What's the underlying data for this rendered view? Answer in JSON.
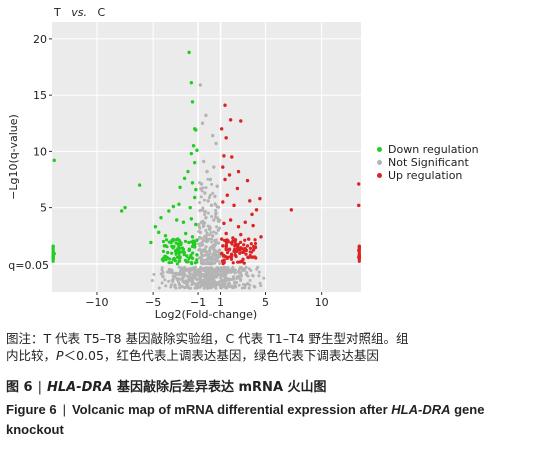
{
  "header": {
    "t": "T",
    "vs": "vs.",
    "c": "C"
  },
  "chart_data": {
    "type": "scatter",
    "xlabel": "Log2(Fold-change)",
    "ylabel": "−Lg10(q-value)",
    "xlim": [
      -14,
      13.5
    ],
    "ylim": [
      -2.5,
      21.5
    ],
    "x_ticks": [
      -10,
      -5,
      -1,
      1,
      5,
      10
    ],
    "x_tick_labels": [
      "−10",
      "−5",
      "−1",
      "1",
      "5",
      "10"
    ],
    "y_ticks": [
      5,
      10,
      15,
      20
    ],
    "y_tick_labels": [
      "5",
      "10",
      "15",
      "20"
    ],
    "q_threshold_label": "q=0.05",
    "q_threshold_y": 0,
    "fc_thresholds": [
      -1,
      1
    ],
    "grid": true,
    "legend_position": "right",
    "series": [
      {
        "name": "Down regulation",
        "color": "#22cc22",
        "points": [
          [
            -1.8,
            18.8
          ],
          [
            -1.6,
            16.1
          ],
          [
            -1.5,
            14.4
          ],
          [
            -1.3,
            12.0
          ],
          [
            -1.2,
            11.9
          ],
          [
            -1.4,
            10.5
          ],
          [
            -1.1,
            10.1
          ],
          [
            -1.6,
            9.8
          ],
          [
            -1.3,
            9.0
          ],
          [
            -1.9,
            8.2
          ],
          [
            -2.2,
            7.6
          ],
          [
            -1.5,
            7.2
          ],
          [
            -2.6,
            6.8
          ],
          [
            -1.2,
            6.6
          ],
          [
            -6.2,
            7.0
          ],
          [
            -7.5,
            5.0
          ],
          [
            -7.8,
            4.7
          ],
          [
            -4.3,
            4.1
          ],
          [
            -3.6,
            4.7
          ],
          [
            -3.2,
            5.1
          ],
          [
            -2.7,
            5.3
          ],
          [
            -1.7,
            5.0
          ],
          [
            -1.3,
            5.9
          ],
          [
            -4.8,
            3.3
          ],
          [
            -4.5,
            2.8
          ],
          [
            -3.9,
            2.5
          ],
          [
            -2.9,
            3.9
          ],
          [
            -2.3,
            3.7
          ],
          [
            -1.6,
            4.0
          ],
          [
            -1.2,
            3.5
          ],
          [
            -5.2,
            1.9
          ],
          [
            -4.0,
            1.6
          ],
          [
            -3.4,
            1.9
          ],
          [
            -2.8,
            2.2
          ],
          [
            -2.1,
            2.7
          ],
          [
            -1.5,
            2.4
          ],
          [
            -1.1,
            2.1
          ],
          [
            -3.7,
            1.0
          ],
          [
            -3.0,
            1.1
          ],
          [
            -2.4,
            1.4
          ],
          [
            -1.8,
            1.2
          ],
          [
            -1.3,
            1.5
          ],
          [
            -3.2,
            0.4
          ],
          [
            -2.6,
            0.6
          ],
          [
            -2.0,
            0.7
          ],
          [
            -1.5,
            0.5
          ],
          [
            -1.1,
            0.8
          ],
          [
            -13.8,
            9.2
          ],
          [
            -13.8,
            0.9
          ],
          [
            -13.9,
            0.4
          ]
        ]
      },
      {
        "name": "Not Significant",
        "color": "#b4b4b4",
        "points": [
          [
            -0.8,
            15.9
          ],
          [
            -0.6,
            12.5
          ],
          [
            -0.3,
            13.2
          ],
          [
            0.3,
            11.4
          ],
          [
            0.6,
            10.7
          ],
          [
            -0.5,
            9.1
          ],
          [
            0.4,
            8.6
          ],
          [
            -0.2,
            8.2
          ],
          [
            0.1,
            7.5
          ],
          [
            -0.7,
            7.1
          ],
          [
            0.7,
            6.9
          ],
          [
            -0.4,
            6.3
          ],
          [
            0.5,
            6.0
          ],
          [
            -0.1,
            5.6
          ],
          [
            0.2,
            5.2
          ],
          [
            -0.6,
            4.8
          ],
          [
            0.6,
            4.5
          ],
          [
            -0.3,
            4.1
          ],
          [
            0.4,
            3.9
          ],
          [
            -0.5,
            3.4
          ],
          [
            0.0,
            3.1
          ],
          [
            0.8,
            3.0
          ],
          [
            -0.8,
            2.8
          ],
          [
            0.3,
            2.5
          ],
          [
            -0.2,
            2.2
          ],
          [
            0.6,
            1.9
          ],
          [
            -0.6,
            1.7
          ],
          [
            0.1,
            1.4
          ],
          [
            -0.4,
            1.1
          ],
          [
            0.5,
            1.0
          ],
          [
            -0.1,
            0.7
          ],
          [
            0.7,
            0.6
          ],
          [
            -0.7,
            0.4
          ],
          [
            0.2,
            0.3
          ]
        ]
      },
      {
        "name": "Up regulation",
        "color": "#dd2222",
        "points": [
          [
            1.4,
            14.1
          ],
          [
            1.9,
            12.8
          ],
          [
            2.8,
            12.7
          ],
          [
            1.1,
            12.0
          ],
          [
            1.5,
            11.2
          ],
          [
            1.3,
            9.6
          ],
          [
            2.0,
            9.5
          ],
          [
            1.2,
            8.6
          ],
          [
            2.6,
            8.2
          ],
          [
            1.8,
            7.9
          ],
          [
            1.4,
            7.5
          ],
          [
            3.4,
            7.4
          ],
          [
            2.5,
            6.7
          ],
          [
            4.5,
            5.8
          ],
          [
            3.6,
            5.6
          ],
          [
            1.6,
            6.1
          ],
          [
            4.2,
            4.8
          ],
          [
            7.3,
            4.8
          ],
          [
            3.8,
            4.4
          ],
          [
            2.2,
            5.2
          ],
          [
            1.2,
            5.5
          ],
          [
            3.9,
            3.4
          ],
          [
            3.2,
            3.7
          ],
          [
            2.6,
            3.3
          ],
          [
            1.9,
            3.9
          ],
          [
            1.3,
            3.6
          ],
          [
            4.6,
            2.4
          ],
          [
            3.5,
            2.2
          ],
          [
            2.8,
            2.6
          ],
          [
            2.1,
            2.3
          ],
          [
            1.5,
            2.7
          ],
          [
            1.1,
            2.2
          ],
          [
            4.1,
            1.5
          ],
          [
            3.3,
            1.2
          ],
          [
            2.5,
            1.6
          ],
          [
            1.8,
            1.3
          ],
          [
            1.2,
            1.6
          ],
          [
            3.9,
            0.6
          ],
          [
            3.0,
            0.4
          ],
          [
            2.3,
            0.8
          ],
          [
            1.6,
            0.5
          ],
          [
            1.1,
            0.9
          ],
          [
            13.3,
            7.1
          ],
          [
            13.3,
            5.2
          ],
          [
            13.3,
            1.2
          ],
          [
            13.3,
            0.6
          ]
        ]
      }
    ]
  },
  "caption": {
    "line1": "图注：T 代表 T5–T8 基因敲除实验组，C 代表 T1–T4 野生型对照组。组",
    "line2_a": "内比较，",
    "line2_p": "P",
    "line2_b": "＜0.05，红色代表上调表达基因，绿色代表下调表达基因"
  },
  "figure_cn": {
    "label": "图 6",
    "sep": "|",
    "gene": "HLA-DRA",
    "text": " 基因敲除后差异表达 mRNA 火山图"
  },
  "figure_en": {
    "label": "Figure 6",
    "sep": "|",
    "text": "Volcanic map of mRNA differential expression after ",
    "gene": "HLA-DRA",
    "text2": " gene knockout"
  }
}
